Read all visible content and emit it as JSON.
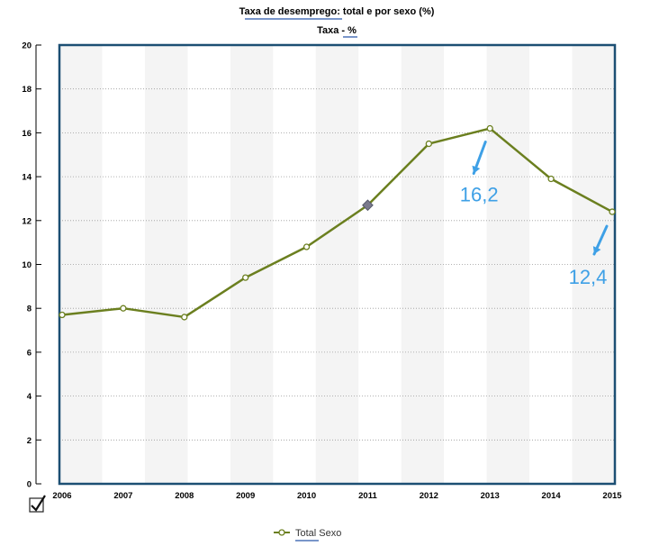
{
  "chart_data": {
    "type": "line",
    "title": "Taxa de desemprego: total e por sexo (%)",
    "subtitle": "Taxa - %",
    "x": [
      "2006",
      "2007",
      "2008",
      "2009",
      "2010",
      "2011",
      "2012",
      "2013",
      "2014",
      "2015"
    ],
    "ylim": [
      0,
      20
    ],
    "yticks": [
      0,
      2,
      4,
      6,
      8,
      10,
      12,
      14,
      16,
      18,
      20
    ],
    "grid": true,
    "legend_position": "bottom",
    "series": [
      {
        "name": "Total Sexo",
        "values": [
          7.7,
          8.0,
          7.6,
          9.4,
          10.8,
          12.7,
          15.5,
          16.2,
          13.9,
          12.4
        ],
        "color": "#6b7f1f"
      }
    ],
    "annotations": [
      {
        "text": "16,2",
        "x": "2013",
        "y": 16.2
      },
      {
        "text": "12,4",
        "x": "2015",
        "y": 12.4
      }
    ],
    "colors": {
      "frame": "#1c4f73",
      "band": "#f4f4f4",
      "annotation": "#3ea0e6",
      "highlight": "#4d73b8"
    }
  },
  "ui": {
    "checkbox_checked": true
  }
}
